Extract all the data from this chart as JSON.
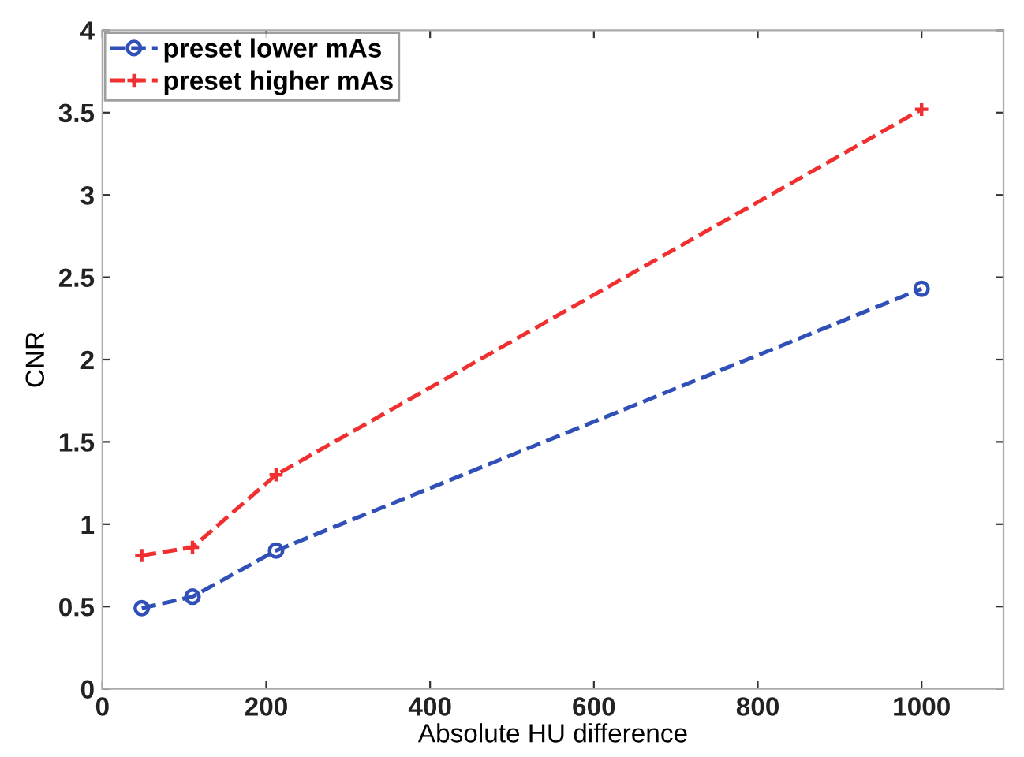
{
  "chart_data": {
    "type": "line",
    "xlabel": "Absolute HU difference",
    "ylabel": "CNR",
    "x": [
      48,
      110,
      212,
      1000
    ],
    "series": [
      {
        "name": "preset lower mAs",
        "color": "#3050b8",
        "values": [
          0.49,
          0.56,
          0.84,
          2.43
        ],
        "marker": "circle"
      },
      {
        "name": "preset higher mAs",
        "color": "#f03030",
        "values": [
          0.81,
          0.86,
          1.3,
          3.52
        ],
        "marker": "cross"
      }
    ],
    "line_style": "dashed",
    "xlim": [
      0,
      1100
    ],
    "xticks": [
      0,
      200,
      400,
      600,
      800,
      1000
    ],
    "ylim": [
      0,
      4
    ],
    "yticks": [
      0,
      0.5,
      1,
      1.5,
      2,
      2.5,
      3,
      3.5,
      4
    ],
    "grid": false,
    "legend": "top left"
  }
}
